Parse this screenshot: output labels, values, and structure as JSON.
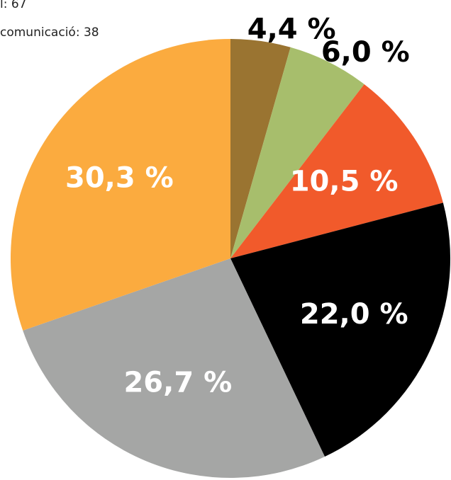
{
  "chart_data": {
    "type": "pie",
    "annotations": [
      "l: 67",
      "comunicació: 38"
    ],
    "categories": [
      null,
      null,
      null,
      null,
      null,
      null
    ],
    "values": [
      4.4,
      6.0,
      10.5,
      22.0,
      26.7,
      30.3
    ],
    "value_labels": [
      "4,4 %",
      "6,0 %",
      "10,5 %",
      "22,0 %",
      "26,7 %",
      "30,3 %"
    ],
    "colors": [
      "#9a7431",
      "#a7be6c",
      "#f15a2b",
      "#000000",
      "#a5a6a5",
      "#fbab3f"
    ]
  }
}
